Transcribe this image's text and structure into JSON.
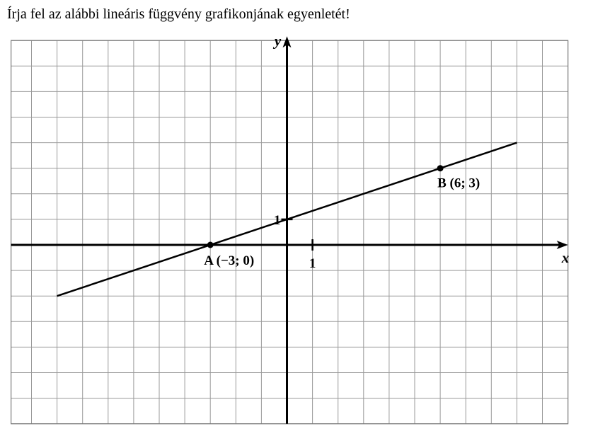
{
  "instruction": "Írja fel az alábbi lineáris függvény grafikonjának egyenletét!",
  "chart_data": {
    "type": "line",
    "title": "",
    "xlabel": "x",
    "ylabel": "y",
    "xlim": [
      -11,
      11
    ],
    "ylim": [
      -7,
      8
    ],
    "grid": true,
    "tick_labels": {
      "x": "1",
      "y": "1"
    },
    "series": [
      {
        "x": [
          -9,
          9
        ],
        "y": [
          -2,
          4
        ]
      }
    ],
    "points": [
      {
        "label": "A (−3; 0)",
        "x": -3,
        "y": 0
      },
      {
        "label": "B (6; 3)",
        "x": 6,
        "y": 3
      }
    ]
  }
}
